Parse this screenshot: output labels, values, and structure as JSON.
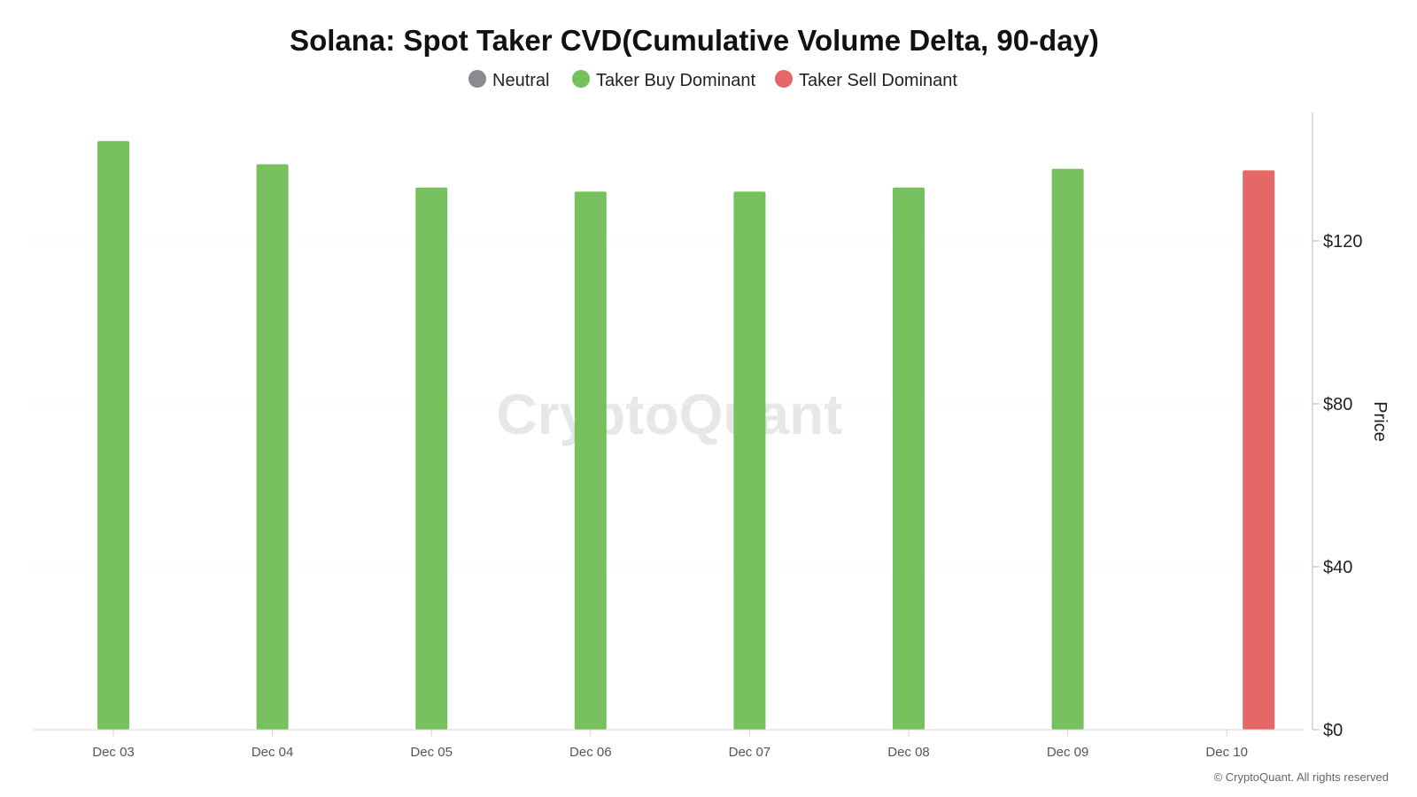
{
  "chart_data": {
    "type": "bar",
    "title": "Solana: Spot Taker CVD(Cumulative Volume Delta, 90-day)",
    "ylabel": "Price",
    "y_axis_position": "right",
    "ylim": [
      0,
      150
    ],
    "y_ticks": [
      {
        "value": 0,
        "label": "$0"
      },
      {
        "value": 40,
        "label": "$40"
      },
      {
        "value": 80,
        "label": "$80"
      },
      {
        "value": 120,
        "label": "$120"
      }
    ],
    "grid": true,
    "legend_position": "top-center",
    "legend": [
      {
        "name": "Neutral",
        "color": "#8a8a92"
      },
      {
        "name": "Taker Buy Dominant",
        "color": "#76c15e"
      },
      {
        "name": "Taker Sell Dominant",
        "color": "#e56766"
      }
    ],
    "categories": [
      "Dec 03",
      "Dec 04",
      "Dec 05",
      "Dec 06",
      "Dec 07",
      "Dec 08",
      "Dec 09",
      "Dec 10"
    ],
    "bars": [
      {
        "category": "Dec 03",
        "value": 144.5,
        "status": "Taker Buy Dominant"
      },
      {
        "category": "Dec 04",
        "value": 138.8,
        "status": "Taker Buy Dominant"
      },
      {
        "category": "Dec 05",
        "value": 133.1,
        "status": "Taker Buy Dominant"
      },
      {
        "category": "Dec 06",
        "value": 132.1,
        "status": "Taker Buy Dominant"
      },
      {
        "category": "Dec 07",
        "value": 132.1,
        "status": "Taker Buy Dominant"
      },
      {
        "category": "Dec 08",
        "value": 133.1,
        "status": "Taker Buy Dominant"
      },
      {
        "category": "Dec 09",
        "value": 137.7,
        "status": "Taker Buy Dominant"
      },
      {
        "category": "Dec 10",
        "value": 137.3,
        "status": "Taker Sell Dominant"
      }
    ]
  },
  "watermark": "CryptoQuant",
  "copyright": "© CryptoQuant. All rights reserved"
}
